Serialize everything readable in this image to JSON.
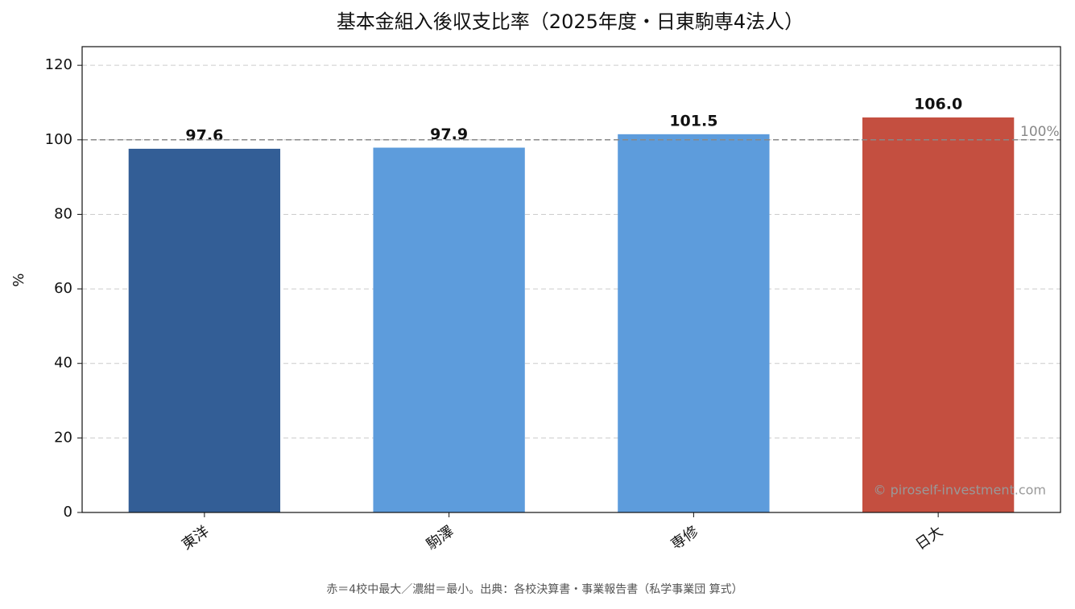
{
  "chart_data": {
    "type": "bar",
    "title": "基本金組入後収支比率（2025年度・日東駒専4法人）",
    "y_label": "%",
    "categories": [
      "東洋",
      "駒澤",
      "専修",
      "日大"
    ],
    "values": [
      97.6,
      97.9,
      101.5,
      106.0
    ],
    "value_labels": [
      "97.6",
      "97.9",
      "101.5",
      "106.0"
    ],
    "colors": [
      "#335e96",
      "#5d9cdc",
      "#5d9cdc",
      "#c44f40"
    ],
    "ylim": [
      0,
      125
    ],
    "yticks": [
      0,
      20,
      40,
      60,
      80,
      100,
      120
    ],
    "grid": true,
    "reference_line": {
      "value": 100,
      "label": "100%"
    },
    "watermark": "© piroself-investment.com",
    "footnote": "赤＝4校中最大／濃紺＝最小。出典：各校決算書・事業報告書（私学事業団 算式）"
  }
}
